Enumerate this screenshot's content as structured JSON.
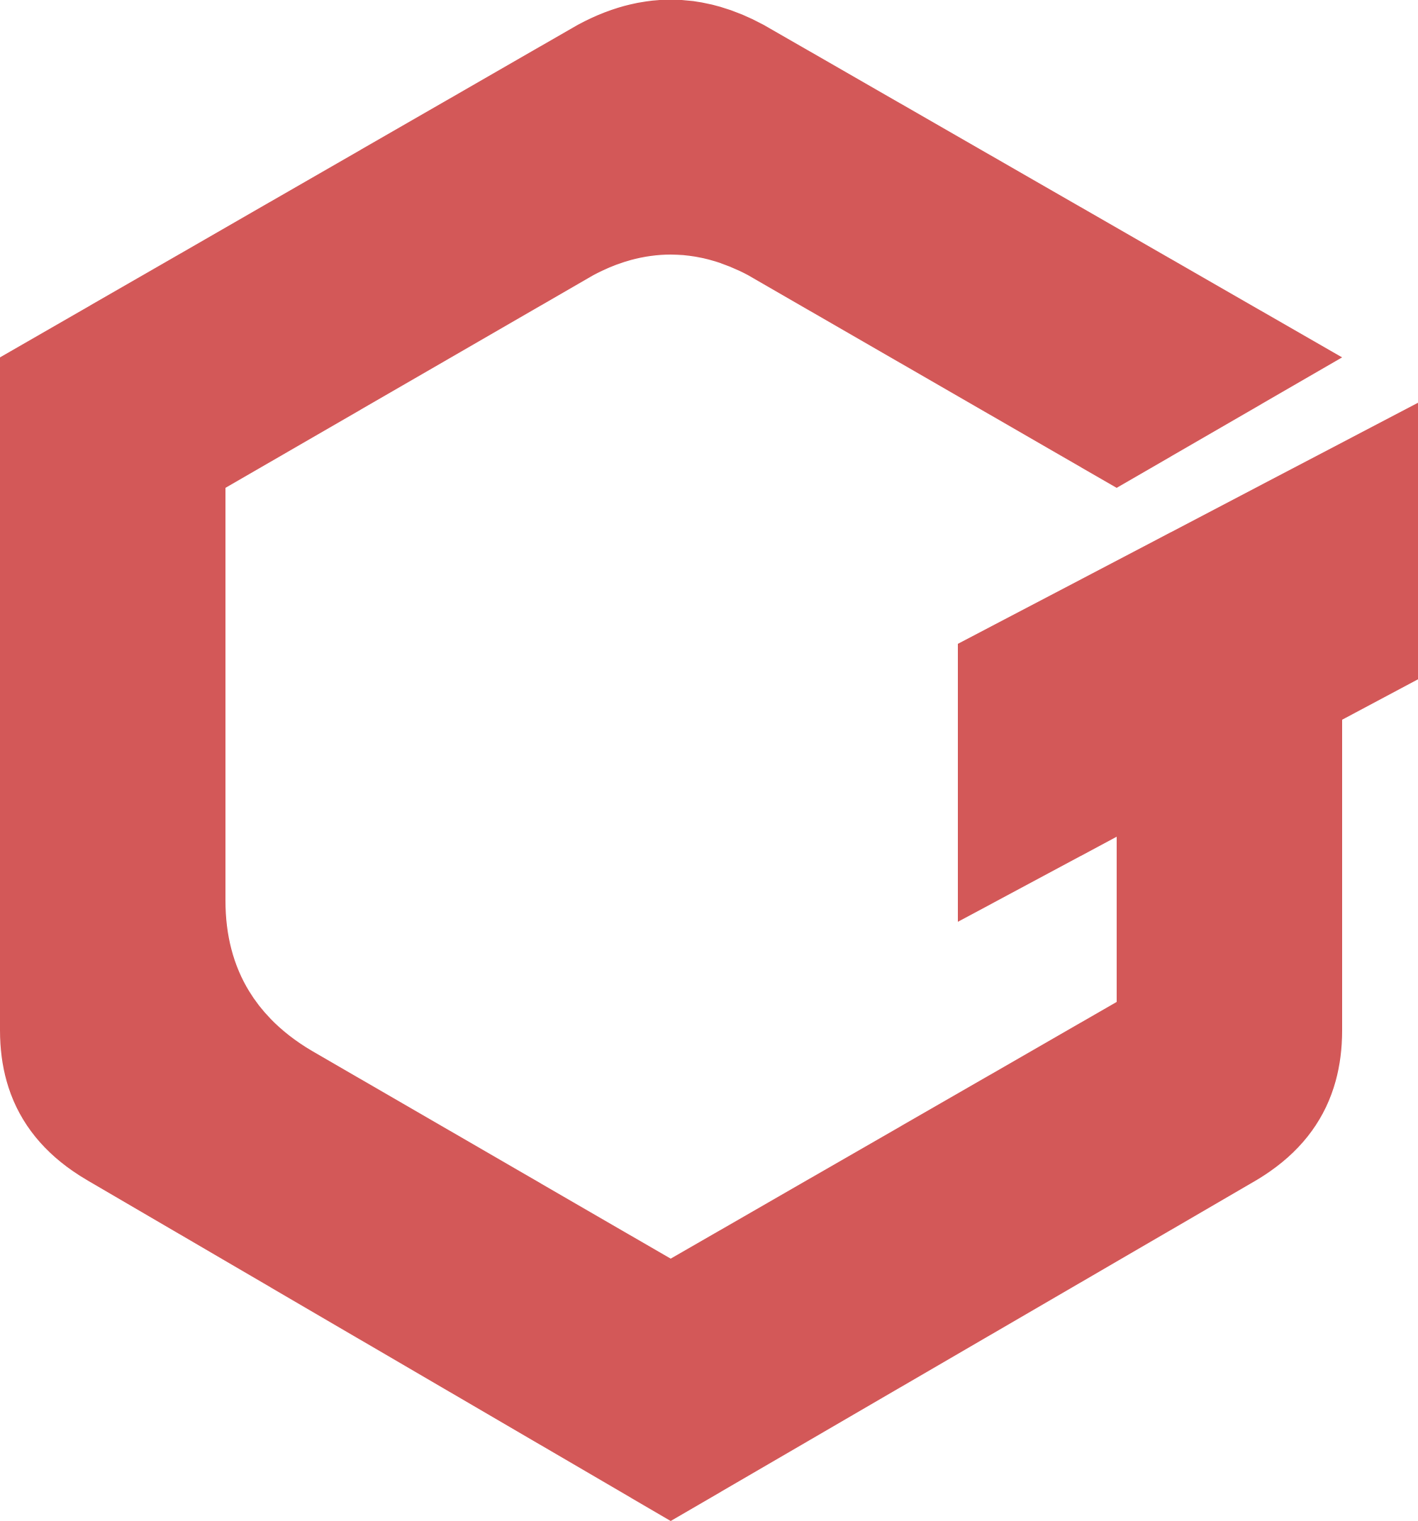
{
  "logo": {
    "icon": "hexagonal-g-logo-icon",
    "color": "#D35858",
    "background": "#FFFFFF"
  }
}
